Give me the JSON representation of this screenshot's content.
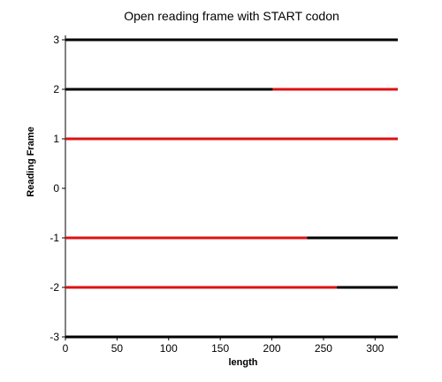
{
  "chart_data": {
    "type": "line",
    "title": "Open reading frame with START codon",
    "xlabel": "length",
    "ylabel": "Reading Frame",
    "xlim": [
      0,
      322
    ],
    "ylim": [
      -3,
      3
    ],
    "x_ticks": [
      0,
      50,
      100,
      150,
      200,
      250,
      300
    ],
    "y_ticks": [
      3,
      2,
      1,
      0,
      -1,
      -2,
      -3
    ],
    "colors": {
      "frame": "#000000",
      "orf": "#dd1111"
    },
    "series": [
      {
        "frame": 3,
        "segments": [
          {
            "x0": 0,
            "x1": 322,
            "type": "frame"
          }
        ]
      },
      {
        "frame": 2,
        "segments": [
          {
            "x0": 0,
            "x1": 201,
            "type": "frame"
          },
          {
            "x0": 201,
            "x1": 322,
            "type": "orf"
          }
        ]
      },
      {
        "frame": 1,
        "segments": [
          {
            "x0": 0,
            "x1": 322,
            "type": "orf"
          }
        ]
      },
      {
        "frame": -1,
        "segments": [
          {
            "x0": 0,
            "x1": 234,
            "type": "orf"
          },
          {
            "x0": 234,
            "x1": 322,
            "type": "frame"
          }
        ]
      },
      {
        "frame": -2,
        "segments": [
          {
            "x0": 0,
            "x1": 263,
            "type": "orf"
          },
          {
            "x0": 263,
            "x1": 322,
            "type": "frame"
          }
        ]
      },
      {
        "frame": -3,
        "segments": [
          {
            "x0": 0,
            "x1": 322,
            "type": "frame"
          }
        ]
      }
    ]
  }
}
